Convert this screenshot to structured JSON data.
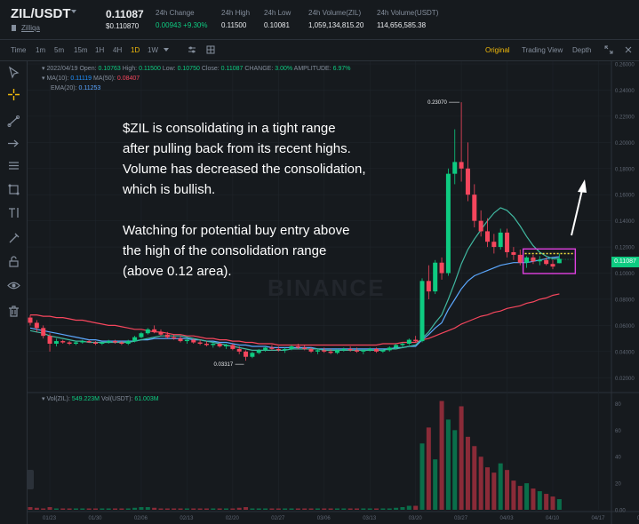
{
  "header": {
    "pair": "ZIL/USDT",
    "sublink": "Zilliqa",
    "price": "0.11087",
    "price_usd": "$0.110870",
    "stats": [
      {
        "label": "24h Change",
        "value": "0.00943 +9.30%"
      },
      {
        "label": "24h High",
        "value": "0.11500"
      },
      {
        "label": "24h Low",
        "value": "0.10081"
      },
      {
        "label": "24h Volume(ZIL)",
        "value": "1,059,134,815.20"
      },
      {
        "label": "24h Volume(USDT)",
        "value": "114,656,585.38"
      }
    ]
  },
  "toolbar": {
    "intervals": [
      "Time",
      "1m",
      "5m",
      "15m",
      "1H",
      "4H",
      "1D",
      "1W"
    ],
    "active_interval": "1D",
    "views": [
      "Original",
      "Trading View",
      "Depth"
    ],
    "active_view": "Original"
  },
  "side_tools": [
    "cursor-icon",
    "crosshair-icon",
    "trendline-icon",
    "arrow-icon",
    "fib-icon",
    "shapes-icon",
    "text-icon",
    "brush-icon",
    "lock-icon",
    "eye-icon",
    "trash-icon"
  ],
  "ohlc": {
    "date": "2022/04/19",
    "open_label": "Open:",
    "open": "0.10763",
    "high_label": "High:",
    "high": "0.11500",
    "low_label": "Low:",
    "low": "0.10750",
    "close_label": "Close:",
    "close": "0.11087",
    "change_label": "CHANGE:",
    "change": "3.00%",
    "amp_label": "AMPLITUDE:",
    "amp": "6.97%"
  },
  "ma": {
    "ma10_label": "MA(10):",
    "ma10": "0.11119",
    "ma50_label": "MA(50):",
    "ma50": "0.08407"
  },
  "ema": {
    "label": "EMA(20):",
    "value": "0.11253"
  },
  "volume": {
    "zil_label": "Vol(ZIL):",
    "zil": "549.223M",
    "usdt_label": "Vol(USDT):",
    "usdt": "61.003M"
  },
  "annotation": {
    "lines_1": [
      "$ZIL is consolidating in a tight range",
      "after pulling back from its recent highs.",
      "Volume has decreased the consolidation,",
      "which is bullish."
    ],
    "lines_2": [
      "Watching for potential buy entry above",
      "the high of the consolidation range",
      "(above 0.12 area)."
    ]
  },
  "watermark": "BINANCE",
  "current_price_tag": "0.11087",
  "chart_data": {
    "type": "candlestick",
    "y_ticks": [
      "0.26000",
      "0.24000",
      "0.22000",
      "0.20000",
      "0.18000",
      "0.16000",
      "0.14000",
      "0.12000",
      "0.10000",
      "0.08000",
      "0.06000",
      "0.04000",
      "0.02000"
    ],
    "ylim": [
      0.01,
      0.26
    ],
    "x_ticks": [
      "01/23",
      "01/30",
      "02/06",
      "02/13",
      "02/20",
      "02/27",
      "03/06",
      "03/13",
      "03/20",
      "03/27",
      "04/03",
      "04/10",
      "04/17",
      "04/24"
    ],
    "vol_ticks": [
      "80",
      "60",
      "40",
      "20",
      "0.00"
    ],
    "vol_ylim": [
      0,
      85
    ],
    "high_label": "0.23070",
    "low_label": "0.03317",
    "colors": {
      "up": "#0ecb81",
      "down": "#f6465d",
      "ma10": "#1e90ff",
      "ma50": "#f6465d",
      "ema": "#40b8a0",
      "annot": "#e040e0"
    },
    "candles": [
      [
        0.066,
        0.068,
        0.06,
        0.062
      ],
      [
        0.062,
        0.064,
        0.055,
        0.058
      ],
      [
        0.058,
        0.06,
        0.05,
        0.052
      ],
      [
        0.052,
        0.054,
        0.04,
        0.046
      ],
      [
        0.046,
        0.05,
        0.044,
        0.048
      ],
      [
        0.048,
        0.049,
        0.046,
        0.047
      ],
      [
        0.047,
        0.048,
        0.045,
        0.046
      ],
      [
        0.046,
        0.048,
        0.045,
        0.047
      ],
      [
        0.047,
        0.049,
        0.046,
        0.048
      ],
      [
        0.048,
        0.049,
        0.047,
        0.047
      ],
      [
        0.047,
        0.048,
        0.045,
        0.046
      ],
      [
        0.046,
        0.047,
        0.045,
        0.047
      ],
      [
        0.047,
        0.049,
        0.046,
        0.048
      ],
      [
        0.048,
        0.049,
        0.046,
        0.047
      ],
      [
        0.047,
        0.048,
        0.045,
        0.046
      ],
      [
        0.046,
        0.049,
        0.045,
        0.048
      ],
      [
        0.048,
        0.052,
        0.047,
        0.051
      ],
      [
        0.051,
        0.055,
        0.05,
        0.054
      ],
      [
        0.054,
        0.058,
        0.053,
        0.057
      ],
      [
        0.057,
        0.06,
        0.054,
        0.055
      ],
      [
        0.055,
        0.057,
        0.052,
        0.053
      ],
      [
        0.053,
        0.055,
        0.05,
        0.051
      ],
      [
        0.051,
        0.053,
        0.049,
        0.05
      ],
      [
        0.05,
        0.052,
        0.047,
        0.048
      ],
      [
        0.048,
        0.05,
        0.046,
        0.049
      ],
      [
        0.049,
        0.05,
        0.046,
        0.047
      ],
      [
        0.047,
        0.049,
        0.045,
        0.046
      ],
      [
        0.046,
        0.048,
        0.044,
        0.045
      ],
      [
        0.045,
        0.047,
        0.043,
        0.046
      ],
      [
        0.046,
        0.047,
        0.043,
        0.044
      ],
      [
        0.044,
        0.046,
        0.042,
        0.045
      ],
      [
        0.045,
        0.046,
        0.041,
        0.042
      ],
      [
        0.042,
        0.044,
        0.038,
        0.04
      ],
      [
        0.04,
        0.041,
        0.033,
        0.036
      ],
      [
        0.036,
        0.04,
        0.035,
        0.039
      ],
      [
        0.039,
        0.042,
        0.038,
        0.041
      ],
      [
        0.041,
        0.044,
        0.04,
        0.043
      ],
      [
        0.043,
        0.045,
        0.041,
        0.042
      ],
      [
        0.042,
        0.044,
        0.04,
        0.041
      ],
      [
        0.041,
        0.043,
        0.039,
        0.042
      ],
      [
        0.042,
        0.045,
        0.041,
        0.044
      ],
      [
        0.044,
        0.046,
        0.042,
        0.043
      ],
      [
        0.043,
        0.045,
        0.041,
        0.042
      ],
      [
        0.042,
        0.043,
        0.039,
        0.04
      ],
      [
        0.04,
        0.042,
        0.038,
        0.041
      ],
      [
        0.041,
        0.043,
        0.039,
        0.04
      ],
      [
        0.04,
        0.042,
        0.038,
        0.039
      ],
      [
        0.039,
        0.042,
        0.038,
        0.041
      ],
      [
        0.041,
        0.043,
        0.04,
        0.042
      ],
      [
        0.042,
        0.044,
        0.04,
        0.041
      ],
      [
        0.041,
        0.043,
        0.039,
        0.04
      ],
      [
        0.04,
        0.042,
        0.038,
        0.041
      ],
      [
        0.041,
        0.043,
        0.04,
        0.042
      ],
      [
        0.042,
        0.043,
        0.039,
        0.04
      ],
      [
        0.04,
        0.042,
        0.039,
        0.041
      ],
      [
        0.041,
        0.044,
        0.04,
        0.043
      ],
      [
        0.043,
        0.046,
        0.042,
        0.045
      ],
      [
        0.045,
        0.047,
        0.043,
        0.046
      ],
      [
        0.046,
        0.05,
        0.045,
        0.049
      ],
      [
        0.049,
        0.052,
        0.047,
        0.048
      ],
      [
        0.048,
        0.096,
        0.047,
        0.094
      ],
      [
        0.094,
        0.106,
        0.08,
        0.086
      ],
      [
        0.086,
        0.11,
        0.084,
        0.108
      ],
      [
        0.108,
        0.112,
        0.095,
        0.1
      ],
      [
        0.1,
        0.18,
        0.098,
        0.176
      ],
      [
        0.176,
        0.21,
        0.168,
        0.185
      ],
      [
        0.185,
        0.2307,
        0.17,
        0.18
      ],
      [
        0.18,
        0.2,
        0.155,
        0.16
      ],
      [
        0.16,
        0.168,
        0.135,
        0.14
      ],
      [
        0.14,
        0.148,
        0.128,
        0.132
      ],
      [
        0.132,
        0.142,
        0.12,
        0.124
      ],
      [
        0.124,
        0.13,
        0.115,
        0.12
      ],
      [
        0.12,
        0.134,
        0.118,
        0.131
      ],
      [
        0.131,
        0.134,
        0.112,
        0.116
      ],
      [
        0.116,
        0.12,
        0.11,
        0.114
      ],
      [
        0.114,
        0.118,
        0.106,
        0.108
      ],
      [
        0.108,
        0.113,
        0.104,
        0.112
      ],
      [
        0.112,
        0.114,
        0.107,
        0.109
      ],
      [
        0.109,
        0.113,
        0.106,
        0.11
      ],
      [
        0.11,
        0.112,
        0.106,
        0.107
      ],
      [
        0.107,
        0.11,
        0.103,
        0.105
      ],
      [
        0.1076,
        0.115,
        0.1075,
        0.11087
      ]
    ],
    "volumes": [
      2,
      1.5,
      1,
      2,
      1,
      1,
      1,
      1,
      1,
      1,
      1,
      1,
      1,
      1,
      1,
      1,
      1.5,
      2,
      2,
      1.5,
      1,
      1,
      1,
      1,
      1,
      1,
      1,
      1,
      1,
      1,
      1,
      1,
      1.5,
      2,
      1,
      1,
      1,
      1,
      1,
      1,
      1,
      1,
      1,
      1,
      1,
      1,
      1,
      1,
      1,
      1,
      1,
      1,
      1,
      1,
      1,
      1,
      1.5,
      2,
      3,
      3,
      50,
      62,
      38,
      82,
      68,
      60,
      78,
      55,
      48,
      40,
      32,
      28,
      35,
      30,
      22,
      18,
      20,
      16,
      14,
      12,
      10,
      8
    ],
    "ma10": [
      0.056,
      0.055,
      0.054,
      0.052,
      0.051,
      0.05,
      0.049,
      0.048,
      0.048,
      0.047,
      0.047,
      0.047,
      0.047,
      0.047,
      0.047,
      0.047,
      0.048,
      0.049,
      0.05,
      0.051,
      0.052,
      0.052,
      0.052,
      0.052,
      0.051,
      0.05,
      0.049,
      0.048,
      0.047,
      0.046,
      0.045,
      0.044,
      0.043,
      0.042,
      0.041,
      0.041,
      0.041,
      0.041,
      0.041,
      0.041,
      0.042,
      0.042,
      0.042,
      0.042,
      0.042,
      0.041,
      0.041,
      0.041,
      0.041,
      0.041,
      0.041,
      0.041,
      0.041,
      0.041,
      0.041,
      0.042,
      0.042,
      0.043,
      0.044,
      0.045,
      0.05,
      0.055,
      0.062,
      0.068,
      0.08,
      0.093,
      0.107,
      0.118,
      0.126,
      0.133,
      0.14,
      0.146,
      0.15,
      0.148,
      0.143,
      0.136,
      0.128,
      0.121,
      0.116,
      0.113,
      0.111,
      0.1112
    ],
    "ema": [
      0.058,
      0.057,
      0.056,
      0.055,
      0.054,
      0.053,
      0.052,
      0.051,
      0.05,
      0.049,
      0.049,
      0.048,
      0.048,
      0.048,
      0.048,
      0.048,
      0.048,
      0.049,
      0.049,
      0.05,
      0.05,
      0.05,
      0.05,
      0.05,
      0.05,
      0.049,
      0.049,
      0.048,
      0.048,
      0.047,
      0.047,
      0.046,
      0.045,
      0.045,
      0.044,
      0.044,
      0.044,
      0.043,
      0.043,
      0.043,
      0.043,
      0.043,
      0.043,
      0.043,
      0.042,
      0.042,
      0.042,
      0.042,
      0.042,
      0.042,
      0.042,
      0.042,
      0.042,
      0.042,
      0.042,
      0.042,
      0.043,
      0.043,
      0.044,
      0.044,
      0.049,
      0.053,
      0.058,
      0.062,
      0.072,
      0.08,
      0.088,
      0.094,
      0.098,
      0.1,
      0.102,
      0.104,
      0.106,
      0.107,
      0.108,
      0.108,
      0.108,
      0.109,
      0.11,
      0.111,
      0.112,
      0.1125
    ],
    "ma50": [
      0.068,
      0.068,
      0.067,
      0.067,
      0.066,
      0.066,
      0.065,
      0.064,
      0.064,
      0.063,
      0.062,
      0.061,
      0.06,
      0.06,
      0.059,
      0.058,
      0.057,
      0.057,
      0.056,
      0.055,
      0.055,
      0.054,
      0.053,
      0.053,
      0.052,
      0.052,
      0.051,
      0.05,
      0.05,
      0.049,
      0.049,
      0.048,
      0.048,
      0.047,
      0.047,
      0.046,
      0.046,
      0.046,
      0.045,
      0.045,
      0.045,
      0.045,
      0.045,
      0.045,
      0.045,
      0.045,
      0.045,
      0.045,
      0.045,
      0.045,
      0.045,
      0.045,
      0.045,
      0.045,
      0.046,
      0.046,
      0.046,
      0.047,
      0.047,
      0.047,
      0.049,
      0.05,
      0.052,
      0.054,
      0.056,
      0.058,
      0.061,
      0.063,
      0.065,
      0.067,
      0.068,
      0.07,
      0.071,
      0.073,
      0.074,
      0.075,
      0.077,
      0.078,
      0.08,
      0.081,
      0.083,
      0.0841
    ],
    "consolidation_high": 0.115,
    "consolidation_low": 0.1
  }
}
